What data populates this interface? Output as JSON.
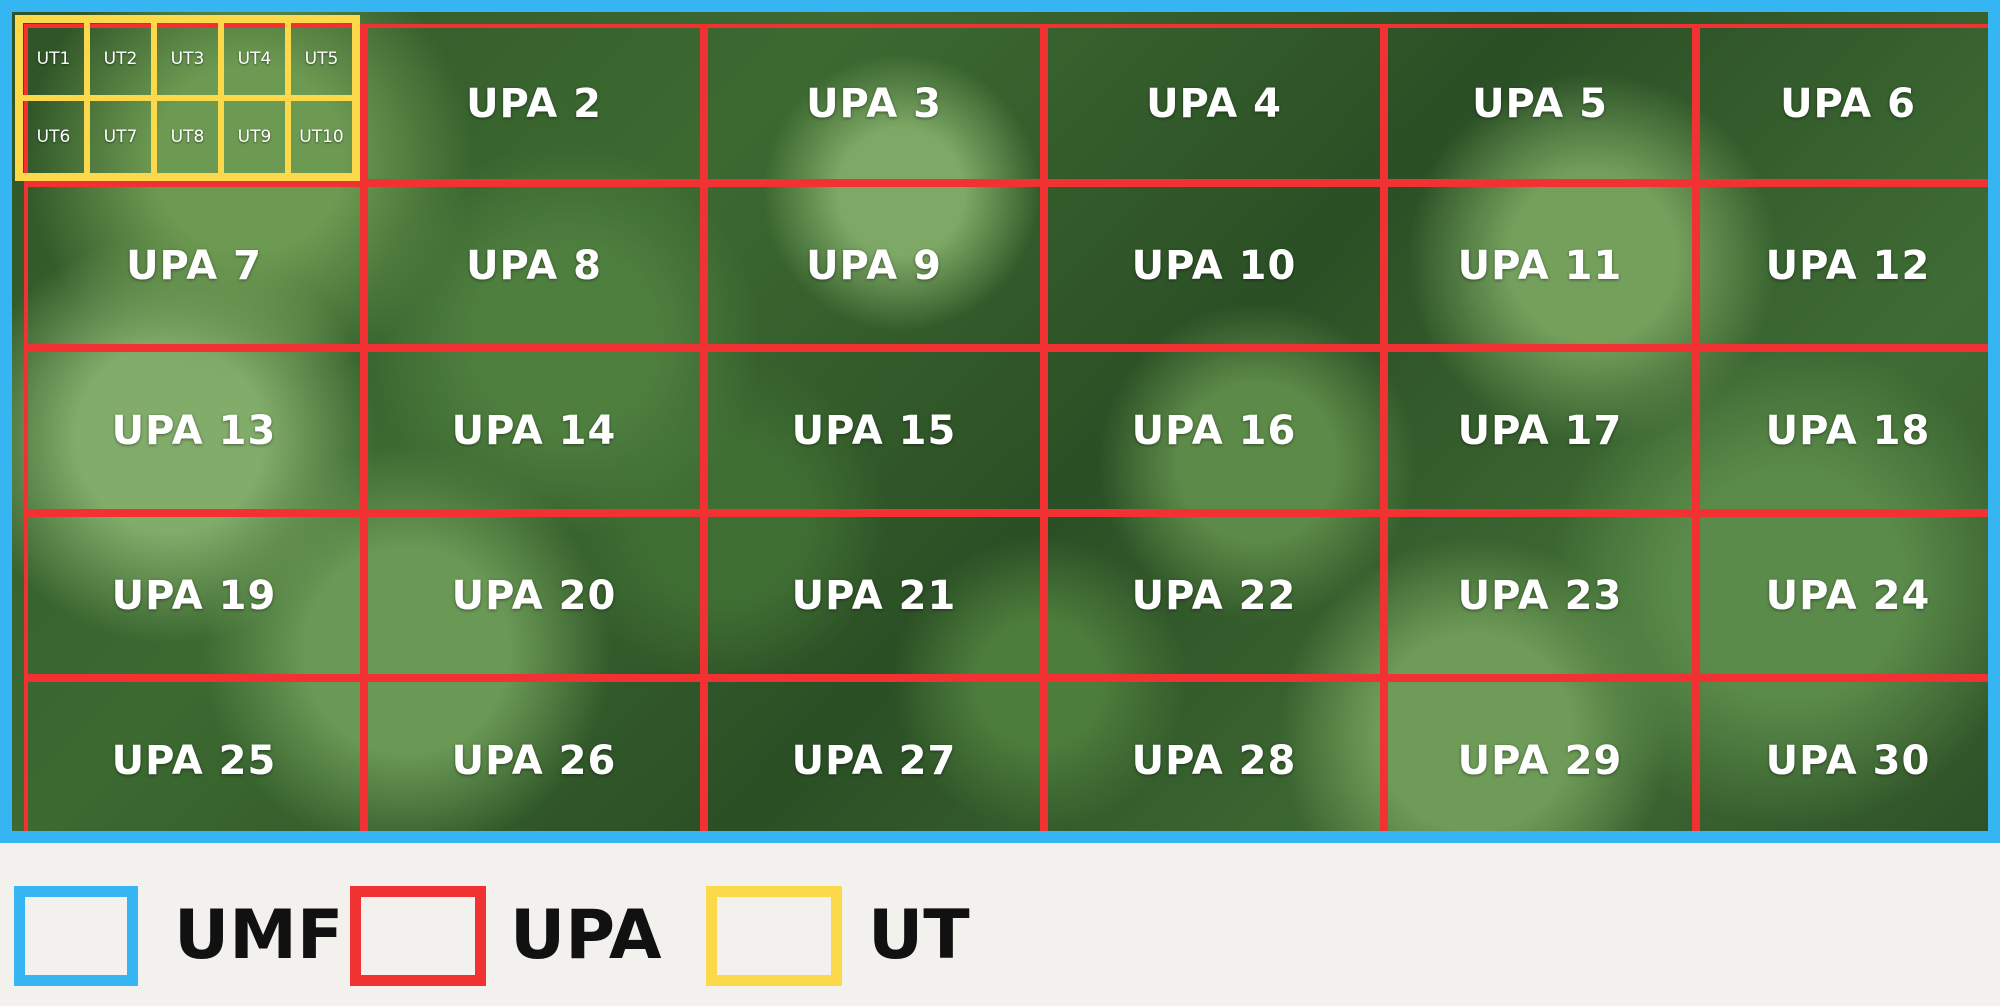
{
  "colors": {
    "umf": "#35b6f2",
    "upa": "#f23232",
    "ut": "#fbd94a"
  },
  "upa_cells": [
    "",
    "UPA 2",
    "UPA 3",
    "UPA 4",
    "UPA 5",
    "UPA 6",
    "UPA 7",
    "UPA 8",
    "UPA 9",
    "UPA 10",
    "UPA 11",
    "UPA 12",
    "UPA 13",
    "UPA 14",
    "UPA 15",
    "UPA 16",
    "UPA 17",
    "UPA 18",
    "UPA 19",
    "UPA 20",
    "UPA 21",
    "UPA 22",
    "UPA 23",
    "UPA 24",
    "UPA 25",
    "UPA 26",
    "UPA 27",
    "UPA 28",
    "UPA 29",
    "UPA 30"
  ],
  "ut_cells": [
    "UT1",
    "UT2",
    "UT3",
    "UT4",
    "UT5",
    "UT6",
    "UT7",
    "UT8",
    "UT9",
    "UT10"
  ],
  "legend": [
    {
      "label": "UMF",
      "color": "#35b6f2"
    },
    {
      "label": "UPA",
      "color": "#f23232"
    },
    {
      "label": "UT",
      "color": "#fbd94a"
    }
  ]
}
